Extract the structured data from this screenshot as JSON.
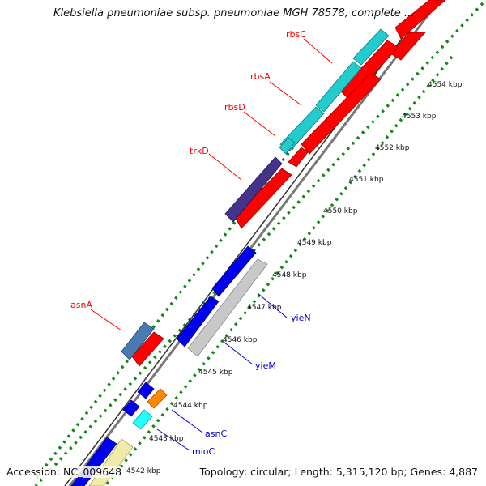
{
  "title": "Klebsiella pneumoniae subsp. pneumoniae MGH 78578, complete ...",
  "footer": {
    "accession": "Accession: NC_009648",
    "summary": "Topology: circular; Length: 5,315,120 bp; Genes: 4,887"
  },
  "kbp_ticks": [
    "4542 kbp",
    "4543 kbp",
    "4544 kbp",
    "4545 kbp",
    "4546 kbp",
    "4547 kbp",
    "4548 kbp",
    "4549 kbp",
    "4550 kbp",
    "4551 kbp",
    "4552 kbp",
    "4553 kbp",
    "4554 kbp"
  ],
  "gene_labels": {
    "rbsC": "rbsC",
    "rbsA": "rbsA",
    "rbsD": "rbsD",
    "trkD": "trkD",
    "asnA": "asnA",
    "yieN": "yieN",
    "yieM": "yieM",
    "asnC": "asnC",
    "mioC": "mioC"
  },
  "colors": {
    "forward_cds": "#ff0000",
    "reverse_cds": "#0000ee",
    "rbs_genes": "#22cccc",
    "trkD": "#443388",
    "asnA": "#4a7ab0",
    "yieN_grey": "#c8c8c8",
    "asnC": "#ff8800",
    "mioC": "#22ffff",
    "reverse_pale": "#f2eaa8",
    "gc_track": "#118811",
    "label_forward": "#ff0000",
    "label_reverse": "#0000cc"
  }
}
